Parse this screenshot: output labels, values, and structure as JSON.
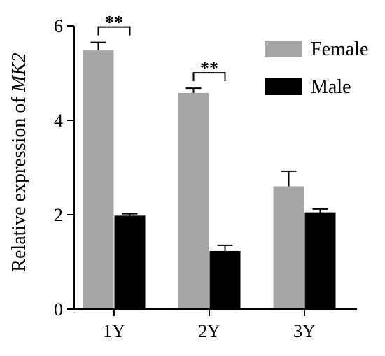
{
  "chart_data": {
    "type": "bar",
    "ylabel_prefix": "Relative expression of ",
    "ylabel_gene": "MK2",
    "xlabel": "",
    "ylim": [
      0,
      6
    ],
    "yticks": [
      0,
      2,
      4,
      6
    ],
    "categories": [
      "1Y",
      "2Y",
      "3Y"
    ],
    "series": [
      {
        "name": "Female",
        "color": "#a6a6a6",
        "values": [
          5.48,
          4.58,
          2.6
        ],
        "errors": [
          0.17,
          0.1,
          0.32
        ]
      },
      {
        "name": "Male",
        "color": "#000000",
        "values": [
          1.98,
          1.23,
          2.05
        ],
        "errors": [
          0.04,
          0.12,
          0.07
        ]
      }
    ],
    "legend_position": "top-right",
    "significance": [
      {
        "category_index": 0,
        "label": "**"
      },
      {
        "category_index": 1,
        "label": "**"
      }
    ]
  }
}
